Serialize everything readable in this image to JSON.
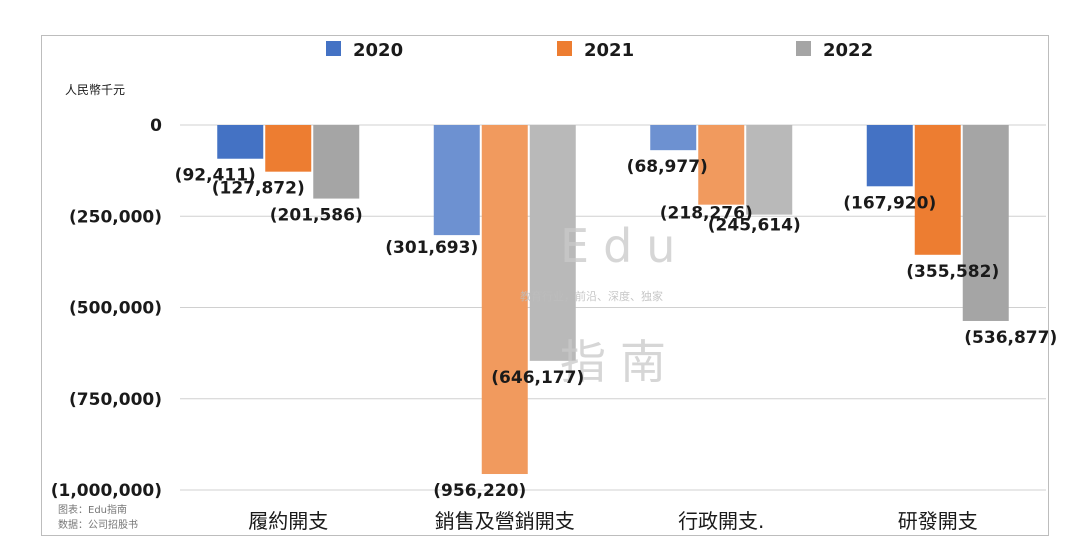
{
  "unit_label": "人民幣千元",
  "source_lines": [
    "图表：Edu指南",
    "数据：公司招股书"
  ],
  "watermark": {
    "brand": "Edu",
    "tagline": "教育行业，前沿、深度、独家",
    "name": "指南"
  },
  "chart_data": {
    "type": "bar",
    "categories": [
      "履約開支",
      "銷售及營銷開支",
      "行政開支.",
      "研發開支"
    ],
    "series": [
      {
        "name": "2020",
        "color": "#4472c4",
        "values": [
          -92411,
          -301693,
          -68977,
          -167920
        ],
        "labels": [
          "(92,411)",
          "(301,693)",
          "(68,977)",
          "(167,920)"
        ]
      },
      {
        "name": "2021",
        "color": "#ed7d31",
        "values": [
          -127872,
          -956220,
          -218276,
          -355582
        ],
        "labels": [
          "(127,872)",
          "(956,220)",
          "(218,276)",
          "(355,582)"
        ]
      },
      {
        "name": "2022",
        "color": "#a5a5a5",
        "values": [
          -201586,
          -646177,
          -245614,
          -536877
        ],
        "labels": [
          "(201,586)",
          "(646,177)",
          "(245,614)",
          "(536,877)"
        ]
      }
    ],
    "ylim": [
      -1000000,
      0
    ],
    "yticks": [
      0,
      -250000,
      -500000,
      -750000,
      -1000000
    ],
    "ytick_labels": [
      "0",
      "(250,000)",
      "(500,000)",
      "(750,000)",
      "(1,000,000)"
    ],
    "legend": "top",
    "grid": true
  }
}
